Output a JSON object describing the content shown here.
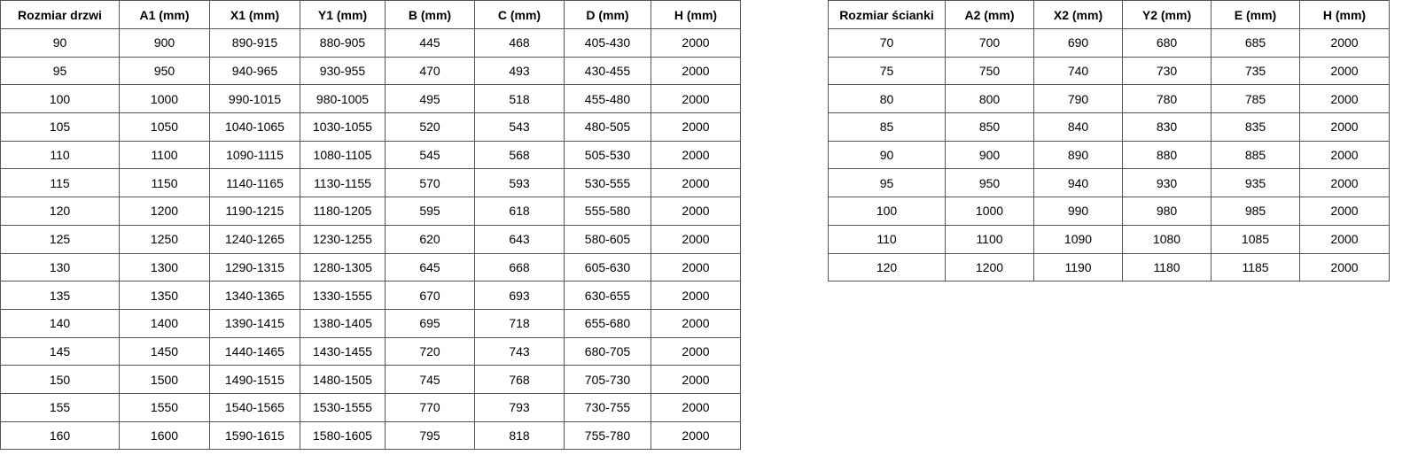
{
  "doors_table": {
    "headers": [
      "Rozmiar drzwi",
      "A1 (mm)",
      "X1 (mm)",
      "Y1 (mm)",
      "B (mm)",
      "C (mm)",
      "D (mm)",
      "H (mm)"
    ],
    "rows": [
      [
        "90",
        "900",
        "890-915",
        "880-905",
        "445",
        "468",
        "405-430",
        "2000"
      ],
      [
        "95",
        "950",
        "940-965",
        "930-955",
        "470",
        "493",
        "430-455",
        "2000"
      ],
      [
        "100",
        "1000",
        "990-1015",
        "980-1005",
        "495",
        "518",
        "455-480",
        "2000"
      ],
      [
        "105",
        "1050",
        "1040-1065",
        "1030-1055",
        "520",
        "543",
        "480-505",
        "2000"
      ],
      [
        "110",
        "1100",
        "1090-1115",
        "1080-1105",
        "545",
        "568",
        "505-530",
        "2000"
      ],
      [
        "115",
        "1150",
        "1140-1165",
        "1130-1155",
        "570",
        "593",
        "530-555",
        "2000"
      ],
      [
        "120",
        "1200",
        "1190-1215",
        "1180-1205",
        "595",
        "618",
        "555-580",
        "2000"
      ],
      [
        "125",
        "1250",
        "1240-1265",
        "1230-1255",
        "620",
        "643",
        "580-605",
        "2000"
      ],
      [
        "130",
        "1300",
        "1290-1315",
        "1280-1305",
        "645",
        "668",
        "605-630",
        "2000"
      ],
      [
        "135",
        "1350",
        "1340-1365",
        "1330-1555",
        "670",
        "693",
        "630-655",
        "2000"
      ],
      [
        "140",
        "1400",
        "1390-1415",
        "1380-1405",
        "695",
        "718",
        "655-680",
        "2000"
      ],
      [
        "145",
        "1450",
        "1440-1465",
        "1430-1455",
        "720",
        "743",
        "680-705",
        "2000"
      ],
      [
        "150",
        "1500",
        "1490-1515",
        "1480-1505",
        "745",
        "768",
        "705-730",
        "2000"
      ],
      [
        "155",
        "1550",
        "1540-1565",
        "1530-1555",
        "770",
        "793",
        "730-755",
        "2000"
      ],
      [
        "160",
        "1600",
        "1590-1615",
        "1580-1605",
        "795",
        "818",
        "755-780",
        "2000"
      ]
    ]
  },
  "walls_table": {
    "headers": [
      "Rozmiar ścianki",
      "A2 (mm)",
      "X2 (mm)",
      "Y2 (mm)",
      "E (mm)",
      "H (mm)"
    ],
    "rows": [
      [
        "70",
        "700",
        "690",
        "680",
        "685",
        "2000"
      ],
      [
        "75",
        "750",
        "740",
        "730",
        "735",
        "2000"
      ],
      [
        "80",
        "800",
        "790",
        "780",
        "785",
        "2000"
      ],
      [
        "85",
        "850",
        "840",
        "830",
        "835",
        "2000"
      ],
      [
        "90",
        "900",
        "890",
        "880",
        "885",
        "2000"
      ],
      [
        "95",
        "950",
        "940",
        "930",
        "935",
        "2000"
      ],
      [
        "100",
        "1000",
        "990",
        "980",
        "985",
        "2000"
      ],
      [
        "110",
        "1100",
        "1090",
        "1080",
        "1085",
        "2000"
      ],
      [
        "120",
        "1200",
        "1190",
        "1180",
        "1185",
        "2000"
      ]
    ]
  }
}
